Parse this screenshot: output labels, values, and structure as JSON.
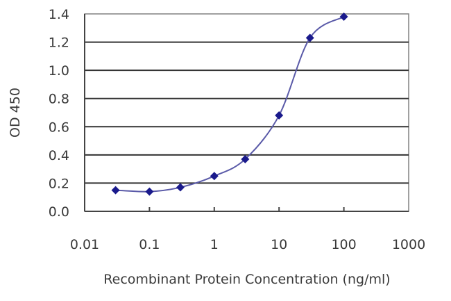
{
  "chart_data": {
    "type": "line",
    "title": "",
    "xlabel": "Recombinant Protein Concentration (ng/ml)",
    "ylabel": "OD 450",
    "xscale": "log",
    "xlim": [
      0.01,
      1000
    ],
    "ylim": [
      0.0,
      1.4
    ],
    "grid": "horizontal",
    "legend": "none",
    "x_ticks": [
      "0.01",
      "0.1",
      "1",
      "10",
      "100",
      "1000"
    ],
    "x_tick_values": [
      0.01,
      0.1,
      1,
      10,
      100,
      1000
    ],
    "y_ticks": [
      "0.0",
      "0.2",
      "0.4",
      "0.6",
      "0.8",
      "1.0",
      "1.2",
      "1.4"
    ],
    "y_tick_values": [
      0.0,
      0.2,
      0.4,
      0.6,
      0.8,
      1.0,
      1.2,
      1.4
    ],
    "series": [
      {
        "name": "OD 450",
        "color": "#1a1a8c",
        "marker": "diamond",
        "x": [
          0.03,
          0.1,
          0.3,
          1,
          3,
          10,
          30,
          100
        ],
        "values": [
          0.15,
          0.14,
          0.17,
          0.25,
          0.37,
          0.68,
          1.23,
          1.38
        ]
      }
    ]
  },
  "colors": {
    "series": "#1a1a8c",
    "line": "#5a5aa8",
    "grid": "#333333",
    "plot_border": "#808080"
  }
}
